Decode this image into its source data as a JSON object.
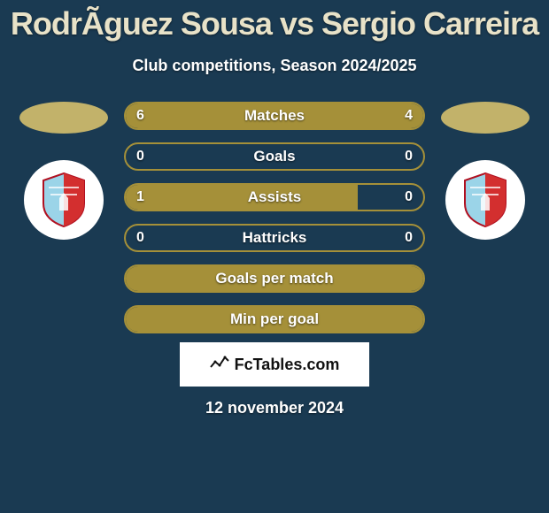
{
  "title": "RodrÃ­guez Sousa vs Sergio Carreira",
  "subtitle": "Club competitions, Season 2024/2025",
  "brand": "FcTables.com",
  "date": "12 november 2024",
  "colors": {
    "background": "#1a3a52",
    "bar_border": "#a59039",
    "bar_fill": "#a59039",
    "title_color": "#e8e2c8",
    "text_color": "#ffffff",
    "marker_color": "#c2b26a",
    "logo_bg": "#ffffff",
    "crest_primary": "#d32f2f",
    "crest_secondary": "#9bd4e8"
  },
  "bars": [
    {
      "label": "Matches",
      "left": "6",
      "right": "4",
      "left_pct": 60,
      "right_pct": 40,
      "show_vals": true
    },
    {
      "label": "Goals",
      "left": "0",
      "right": "0",
      "left_pct": 0,
      "right_pct": 0,
      "show_vals": true
    },
    {
      "label": "Assists",
      "left": "1",
      "right": "0",
      "left_pct": 78,
      "right_pct": 0,
      "show_vals": true
    },
    {
      "label": "Hattricks",
      "left": "0",
      "right": "0",
      "left_pct": 0,
      "right_pct": 0,
      "show_vals": true
    },
    {
      "label": "Goals per match",
      "left": "",
      "right": "",
      "left_pct": 100,
      "right_pct": 0,
      "show_vals": false,
      "full": true
    },
    {
      "label": "Min per goal",
      "left": "",
      "right": "",
      "left_pct": 100,
      "right_pct": 0,
      "show_vals": false,
      "full": true
    }
  ]
}
